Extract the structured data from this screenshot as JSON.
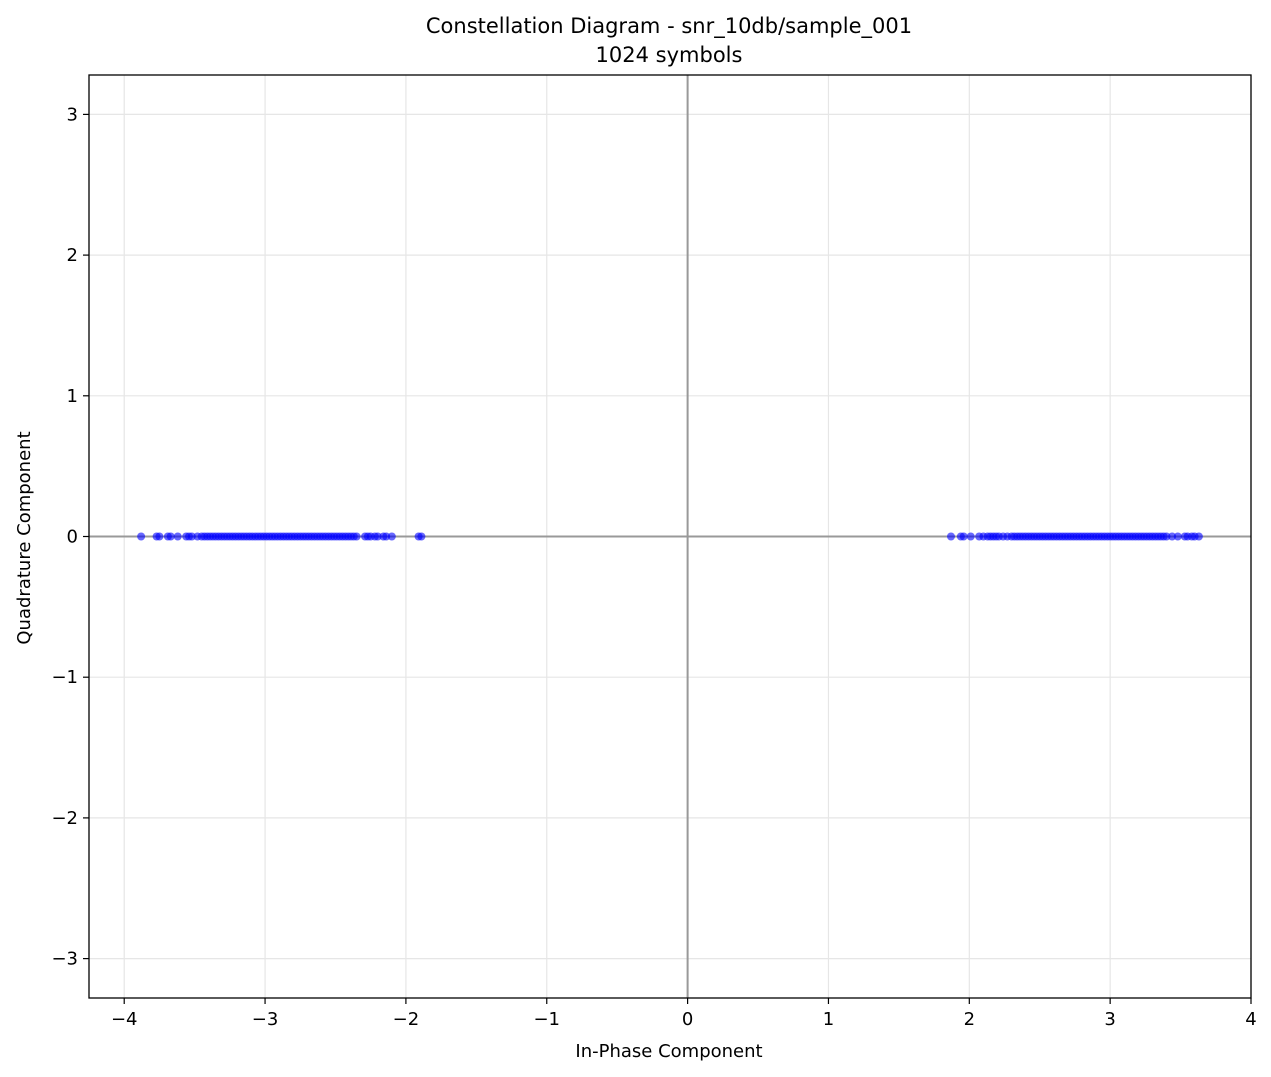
{
  "chart_data": {
    "type": "scatter",
    "title": "Constellation Diagram - snr_10db/sample_001",
    "subtitle": "1024 symbols",
    "xlabel": "In-Phase Component",
    "ylabel": "Quadrature Component",
    "xlim": [
      -4.25,
      4.0
    ],
    "ylim": [
      -3.28,
      3.28
    ],
    "xticks": [
      -4,
      -3,
      -2,
      -1,
      0,
      1,
      2,
      3,
      4
    ],
    "xtick_labels": [
      "−4",
      "−3",
      "−2",
      "−1",
      "0",
      "1",
      "2",
      "3",
      "4"
    ],
    "yticks": [
      -3,
      -2,
      -1,
      0,
      1,
      2,
      3
    ],
    "ytick_labels": [
      "−3",
      "−2",
      "−1",
      "0",
      "1",
      "2",
      "3"
    ],
    "grid": true,
    "reference_lines": {
      "x": 0,
      "y": 0
    },
    "marker_color": "#0000ff",
    "series": [
      {
        "points": [
          [
            -3.88,
            0
          ],
          [
            -3.77,
            0
          ],
          [
            -3.75,
            0
          ],
          [
            -3.69,
            0
          ],
          [
            -3.67,
            0
          ],
          [
            -3.62,
            0
          ],
          [
            -3.56,
            0
          ],
          [
            -3.54,
            0
          ],
          [
            -3.52,
            0
          ],
          [
            -3.48,
            0
          ],
          [
            -3.45,
            0
          ],
          [
            -3.43,
            0
          ],
          [
            -3.41,
            0
          ],
          [
            -3.39,
            0
          ],
          [
            -3.37,
            0
          ],
          [
            -3.35,
            0
          ],
          [
            -3.33,
            0
          ],
          [
            -3.31,
            0
          ],
          [
            -3.29,
            0
          ],
          [
            -3.27,
            0
          ],
          [
            -3.25,
            0
          ],
          [
            -3.23,
            0
          ],
          [
            -3.21,
            0
          ],
          [
            -3.19,
            0
          ],
          [
            -3.17,
            0
          ],
          [
            -3.15,
            0
          ],
          [
            -3.13,
            0
          ],
          [
            -3.11,
            0
          ],
          [
            -3.09,
            0
          ],
          [
            -3.07,
            0
          ],
          [
            -3.05,
            0
          ],
          [
            -3.03,
            0
          ],
          [
            -3.01,
            0
          ],
          [
            -2.99,
            0
          ],
          [
            -2.97,
            0
          ],
          [
            -2.95,
            0
          ],
          [
            -2.93,
            0
          ],
          [
            -2.91,
            0
          ],
          [
            -2.89,
            0
          ],
          [
            -2.87,
            0
          ],
          [
            -2.85,
            0
          ],
          [
            -2.83,
            0
          ],
          [
            -2.81,
            0
          ],
          [
            -2.79,
            0
          ],
          [
            -2.77,
            0
          ],
          [
            -2.75,
            0
          ],
          [
            -2.73,
            0
          ],
          [
            -2.71,
            0
          ],
          [
            -2.69,
            0
          ],
          [
            -2.67,
            0
          ],
          [
            -2.65,
            0
          ],
          [
            -2.63,
            0
          ],
          [
            -2.61,
            0
          ],
          [
            -2.59,
            0
          ],
          [
            -2.57,
            0
          ],
          [
            -2.55,
            0
          ],
          [
            -2.53,
            0
          ],
          [
            -2.51,
            0
          ],
          [
            -2.49,
            0
          ],
          [
            -2.47,
            0
          ],
          [
            -2.45,
            0
          ],
          [
            -2.43,
            0
          ],
          [
            -2.41,
            0
          ],
          [
            -2.39,
            0
          ],
          [
            -2.37,
            0
          ],
          [
            -2.35,
            0
          ],
          [
            -2.29,
            0
          ],
          [
            -2.27,
            0
          ],
          [
            -2.25,
            0
          ],
          [
            -2.22,
            0
          ],
          [
            -2.2,
            0
          ],
          [
            -2.16,
            0
          ],
          [
            -2.14,
            0
          ],
          [
            -2.1,
            0
          ],
          [
            -1.91,
            0
          ],
          [
            -1.89,
            0
          ],
          [
            1.87,
            0
          ],
          [
            1.94,
            0
          ],
          [
            1.96,
            0
          ],
          [
            2.01,
            0
          ],
          [
            2.07,
            0
          ],
          [
            2.1,
            0
          ],
          [
            2.13,
            0
          ],
          [
            2.15,
            0
          ],
          [
            2.17,
            0
          ],
          [
            2.19,
            0
          ],
          [
            2.21,
            0
          ],
          [
            2.24,
            0
          ],
          [
            2.27,
            0
          ],
          [
            2.3,
            0
          ],
          [
            2.32,
            0
          ],
          [
            2.34,
            0
          ],
          [
            2.36,
            0
          ],
          [
            2.38,
            0
          ],
          [
            2.4,
            0
          ],
          [
            2.42,
            0
          ],
          [
            2.44,
            0
          ],
          [
            2.46,
            0
          ],
          [
            2.48,
            0
          ],
          [
            2.5,
            0
          ],
          [
            2.52,
            0
          ],
          [
            2.54,
            0
          ],
          [
            2.56,
            0
          ],
          [
            2.58,
            0
          ],
          [
            2.6,
            0
          ],
          [
            2.62,
            0
          ],
          [
            2.64,
            0
          ],
          [
            2.66,
            0
          ],
          [
            2.68,
            0
          ],
          [
            2.7,
            0
          ],
          [
            2.72,
            0
          ],
          [
            2.74,
            0
          ],
          [
            2.76,
            0
          ],
          [
            2.78,
            0
          ],
          [
            2.8,
            0
          ],
          [
            2.82,
            0
          ],
          [
            2.84,
            0
          ],
          [
            2.86,
            0
          ],
          [
            2.88,
            0
          ],
          [
            2.9,
            0
          ],
          [
            2.92,
            0
          ],
          [
            2.94,
            0
          ],
          [
            2.96,
            0
          ],
          [
            2.98,
            0
          ],
          [
            3.0,
            0
          ],
          [
            3.02,
            0
          ],
          [
            3.04,
            0
          ],
          [
            3.06,
            0
          ],
          [
            3.08,
            0
          ],
          [
            3.1,
            0
          ],
          [
            3.12,
            0
          ],
          [
            3.14,
            0
          ],
          [
            3.16,
            0
          ],
          [
            3.18,
            0
          ],
          [
            3.2,
            0
          ],
          [
            3.22,
            0
          ],
          [
            3.24,
            0
          ],
          [
            3.26,
            0
          ],
          [
            3.28,
            0
          ],
          [
            3.3,
            0
          ],
          [
            3.32,
            0
          ],
          [
            3.34,
            0
          ],
          [
            3.36,
            0
          ],
          [
            3.38,
            0
          ],
          [
            3.4,
            0
          ],
          [
            3.44,
            0
          ],
          [
            3.48,
            0
          ],
          [
            3.53,
            0
          ],
          [
            3.55,
            0
          ],
          [
            3.58,
            0
          ],
          [
            3.6,
            0
          ],
          [
            3.63,
            0
          ]
        ]
      }
    ]
  }
}
